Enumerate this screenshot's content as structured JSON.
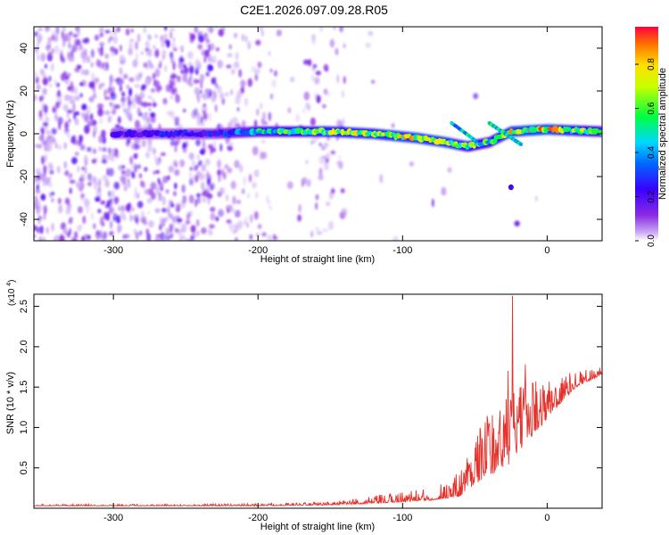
{
  "title": "C2E1.2026.097.09.28.R05",
  "colors": {
    "snr_line": "#e8302a",
    "frame": "#000000"
  },
  "chart_data": [
    {
      "type": "heatmap",
      "xlabel": "Height of straight line (km)",
      "ylabel": "Frequency (Hz)",
      "xlim": [
        -355,
        38
      ],
      "ylim": [
        -50,
        50
      ],
      "x_ticks": [
        "-300",
        "-200",
        "-100",
        "0"
      ],
      "x_tick_values": [
        -300,
        -200,
        -100,
        0
      ],
      "y_ticks": [
        "-40",
        "-20",
        "0",
        "20",
        "40"
      ],
      "y_tick_values": [
        -40,
        -20,
        0,
        20,
        40
      ],
      "colorbar": {
        "label": "Normalized spectral amplitude",
        "range": [
          0,
          0.97
        ],
        "ticks": [
          "0.0",
          "0.2",
          "0.4",
          "0.6",
          "0.8"
        ],
        "tick_values": [
          0.0,
          0.2,
          0.4,
          0.6,
          0.8
        ],
        "colormap": "rainbow (purple-blue-cyan-green-yellow-red)"
      },
      "ridge": {
        "description": "main signal band near 0 Hz",
        "points": [
          {
            "x": -300,
            "y": 0,
            "amp": 0.25
          },
          {
            "x": -230,
            "y": 0,
            "amp": 0.3
          },
          {
            "x": -200,
            "y": 1,
            "amp": 0.55
          },
          {
            "x": -150,
            "y": 1,
            "amp": 0.75
          },
          {
            "x": -120,
            "y": 0,
            "amp": 0.8
          },
          {
            "x": -90,
            "y": -2,
            "amp": 0.85
          },
          {
            "x": -70,
            "y": -4,
            "amp": 0.85
          },
          {
            "x": -55,
            "y": -6,
            "amp": 0.7
          },
          {
            "x": -40,
            "y": -4,
            "amp": 0.6
          },
          {
            "x": -25,
            "y": 1,
            "amp": 0.85
          },
          {
            "x": 0,
            "y": 2,
            "amp": 0.9
          },
          {
            "x": 38,
            "y": 1,
            "amp": 0.6
          }
        ]
      }
    },
    {
      "type": "line",
      "xlabel": "Height of straight line (km)",
      "ylabel": "SNR (10 * v/v)",
      "y_multiplier": "(x10^4)",
      "xlim": [
        -355,
        38
      ],
      "ylim": [
        0,
        2.65
      ],
      "x_ticks": [
        "-300",
        "-200",
        "-100",
        "0"
      ],
      "x_tick_values": [
        -300,
        -200,
        -100,
        0
      ],
      "y_ticks": [
        "0.5",
        "1.0",
        "1.5",
        "2.0",
        "2.5"
      ],
      "y_tick_values": [
        0.5,
        1.0,
        1.5,
        2.0,
        2.5
      ],
      "envelope": {
        "x": [
          -355,
          -300,
          -250,
          -200,
          -150,
          -120,
          -100,
          -80,
          -60,
          -50,
          -40,
          -30,
          -25,
          -20,
          -10,
          0,
          10,
          20,
          38
        ],
        "baseline": [
          0.03,
          0.03,
          0.03,
          0.03,
          0.04,
          0.06,
          0.08,
          0.1,
          0.15,
          0.3,
          0.4,
          0.5,
          0.55,
          0.7,
          0.9,
          1.1,
          1.3,
          1.5,
          1.65
        ],
        "peak": [
          0.05,
          0.05,
          0.05,
          0.06,
          0.08,
          0.15,
          0.22,
          0.25,
          0.5,
          0.9,
          1.2,
          1.3,
          1.6,
          1.5,
          1.6,
          1.6,
          1.65,
          1.7,
          1.75
        ]
      },
      "spikes": [
        {
          "x": -24,
          "y": 2.63
        },
        {
          "x": -27,
          "y": 1.7
        },
        {
          "x": -15,
          "y": 1.78
        },
        {
          "x": -38,
          "y": 1.15
        },
        {
          "x": -40,
          "y": 1.05
        },
        {
          "x": -10,
          "y": 1.55
        },
        {
          "x": 2,
          "y": 1.45
        }
      ]
    }
  ]
}
